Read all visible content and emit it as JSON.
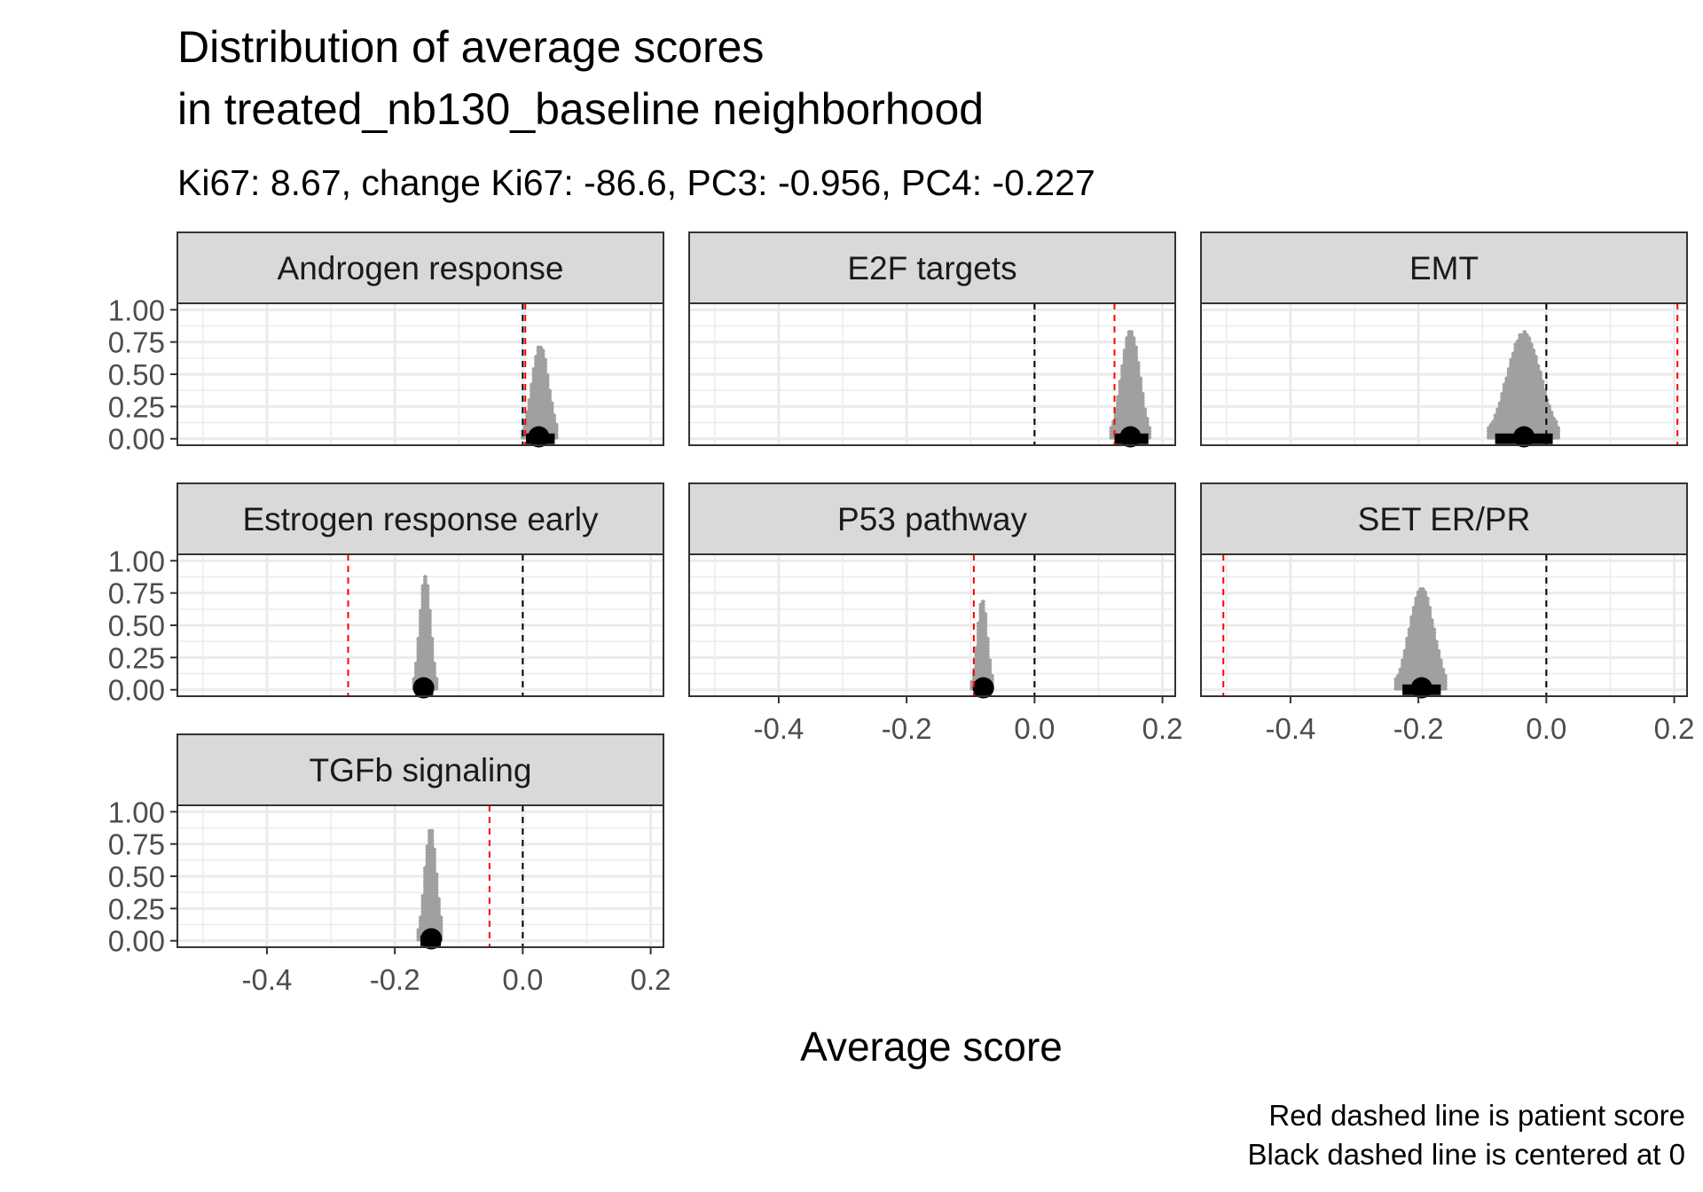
{
  "chart_data": {
    "type": "dotplot",
    "title_lines": [
      "Distribution of average scores",
      "in treated_nb130_baseline neighborhood"
    ],
    "subtitle": "Ki67: 8.67, change Ki67: -86.6, PC3: -0.956, PC4: -0.227",
    "xlabel": "Average score",
    "caption_lines": [
      "Red dashed line is patient score",
      "Black dashed line is centered at 0"
    ],
    "xlim": [
      -0.54,
      0.22
    ],
    "ylim": [
      0,
      1
    ],
    "x_ticks": [
      -0.4,
      -0.2,
      0.0,
      0.2
    ],
    "x_tick_labels": [
      "-0.4",
      "-0.2",
      "0.0",
      "0.2"
    ],
    "y_ticks": [
      0,
      0.25,
      0.5,
      0.75,
      1.0
    ],
    "y_tick_labels": [
      "0.00",
      "0.25",
      "0.50",
      "0.75",
      "1.00"
    ],
    "grid": true,
    "colors": {
      "patient_line": "#ff0000",
      "zero_line": "#000000",
      "dots": "#a0a0a0",
      "strip_fill": "#d9d9d9",
      "panel_border": "#333333",
      "grid": "#ebebeb"
    },
    "facets": [
      {
        "name": "Androgen response",
        "patient_score": 0.004,
        "center": 0.025,
        "interval": [
          0.005,
          0.05
        ],
        "dist_range": [
          0.0,
          0.055
        ],
        "max_height": 0.73
      },
      {
        "name": "E2F targets",
        "patient_score": 0.125,
        "center": 0.15,
        "interval": [
          0.125,
          0.178
        ],
        "dist_range": [
          0.12,
          0.18
        ],
        "max_height": 0.85
      },
      {
        "name": "EMT",
        "patient_score": 0.205,
        "center": -0.035,
        "interval": [
          -0.08,
          0.01
        ],
        "dist_range": [
          -0.09,
          0.02
        ],
        "max_height": 0.83
      },
      {
        "name": "Estrogen response early",
        "patient_score": -0.273,
        "center": -0.155,
        "interval": [
          -0.168,
          -0.14
        ],
        "dist_range": [
          -0.17,
          -0.135
        ],
        "max_height": 0.88
      },
      {
        "name": "P53 pathway",
        "patient_score": -0.095,
        "center": -0.08,
        "interval": [
          -0.095,
          -0.068
        ],
        "dist_range": [
          -0.098,
          -0.065
        ],
        "max_height": 0.7
      },
      {
        "name": "SET ER/PR",
        "patient_score": -0.505,
        "center": -0.195,
        "interval": [
          -0.225,
          -0.165
        ],
        "dist_range": [
          -0.235,
          -0.155
        ],
        "max_height": 0.8
      },
      {
        "name": "TGFb signaling",
        "patient_score": -0.052,
        "center": -0.143,
        "interval": [
          -0.16,
          -0.128
        ],
        "dist_range": [
          -0.163,
          -0.125
        ],
        "max_height": 0.88
      }
    ]
  }
}
